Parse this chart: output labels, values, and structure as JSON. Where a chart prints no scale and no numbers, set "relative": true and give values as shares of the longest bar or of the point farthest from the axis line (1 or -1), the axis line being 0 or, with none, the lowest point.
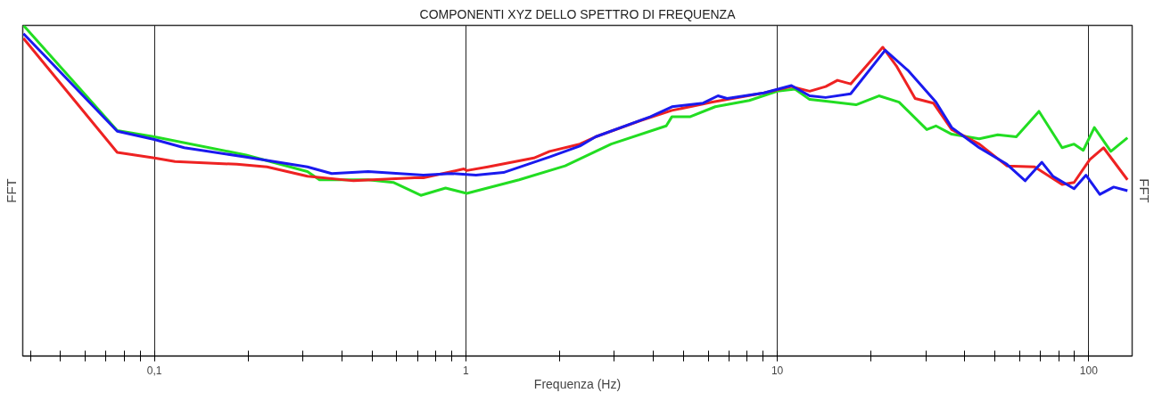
{
  "chart_data": {
    "type": "line",
    "title": "COMPONENTI XYZ DELLO SPETTRO DI FREQUENZA",
    "xlabel": "Frequenza (Hz)",
    "ylabel": "FFT",
    "y2label": "FFT",
    "relative": true,
    "log": "x",
    "grid": "x",
    "xlim": [
      0.0378,
      137.8
    ],
    "xticks": [
      {
        "value": 0.04,
        "label": null
      },
      {
        "value": 0.05,
        "label": null
      },
      {
        "value": 0.06,
        "label": null
      },
      {
        "value": 0.07,
        "label": null
      },
      {
        "value": 0.08,
        "label": null
      },
      {
        "value": 0.09,
        "label": null
      },
      {
        "value": 0.1,
        "label": "0,1"
      },
      {
        "value": 0.2,
        "label": null
      },
      {
        "value": 0.3,
        "label": null
      },
      {
        "value": 0.4,
        "label": null
      },
      {
        "value": 0.5,
        "label": null
      },
      {
        "value": 0.6,
        "label": null
      },
      {
        "value": 0.7,
        "label": null
      },
      {
        "value": 0.8,
        "label": null
      },
      {
        "value": 0.9,
        "label": null
      },
      1,
      {
        "value": 2,
        "label": null
      },
      {
        "value": 3,
        "label": null
      },
      {
        "value": 4,
        "label": null
      },
      {
        "value": 5,
        "label": null
      },
      {
        "value": 6,
        "label": null
      },
      {
        "value": 7,
        "label": null
      },
      {
        "value": 8,
        "label": null
      },
      {
        "value": 9,
        "label": null
      },
      10,
      {
        "value": 20,
        "label": null
      },
      {
        "value": 30,
        "label": null
      },
      {
        "value": 40,
        "label": null
      },
      {
        "value": 50,
        "label": null
      },
      {
        "value": 60,
        "label": null
      },
      {
        "value": 70,
        "label": null
      },
      {
        "value": 80,
        "label": null
      },
      {
        "value": 90,
        "label": null
      },
      100
    ],
    "series": [
      {
        "color": "#22dd22",
        "x": [
          0.038,
          0.076,
          0.1,
          0.197,
          0.31,
          0.339,
          0.486,
          0.585,
          0.717,
          0.861,
          1.007,
          1.483,
          2.084,
          2.93,
          4.4,
          4.59,
          5.26,
          6.32,
          8.13,
          10,
          11.4,
          12.7,
          14.3,
          17.9,
          21.2,
          24.6,
          30.2,
          32.3,
          36.3,
          44.5,
          51.0,
          58.5,
          69.2,
          82.1,
          89.7,
          96.0,
          104.2,
          117.7,
          133.1
        ],
        "values": [
          1.0,
          0.682,
          0.663,
          0.608,
          0.558,
          0.533,
          0.533,
          0.525,
          0.486,
          0.508,
          0.492,
          0.533,
          0.575,
          0.641,
          0.696,
          0.724,
          0.724,
          0.754,
          0.773,
          0.801,
          0.807,
          0.776,
          0.771,
          0.76,
          0.787,
          0.768,
          0.685,
          0.696,
          0.671,
          0.657,
          0.669,
          0.663,
          0.74,
          0.63,
          0.641,
          0.622,
          0.691,
          0.619,
          0.66
        ]
      },
      {
        "color": "#ee2222",
        "x": [
          0.038,
          0.076,
          0.1,
          0.1165,
          0.184,
          0.23,
          0.31,
          0.436,
          0.684,
          0.731,
          0.986,
          1.007,
          1.177,
          1.654,
          1.857,
          2.323,
          2.61,
          3.66,
          4.59,
          6.19,
          9.06,
          11.1,
          12.7,
          14.3,
          15.6,
          17.2,
          21.8,
          24.1,
          27.7,
          31.7,
          36.3,
          44.5,
          54.6,
          67.0,
          82.1,
          89.7,
          100.7,
          111.5,
          133.1
        ],
        "values": [
          0.961,
          0.616,
          0.599,
          0.588,
          0.58,
          0.572,
          0.544,
          0.53,
          0.539,
          0.539,
          0.566,
          0.561,
          0.572,
          0.599,
          0.619,
          0.641,
          0.663,
          0.713,
          0.743,
          0.768,
          0.796,
          0.815,
          0.801,
          0.815,
          0.834,
          0.823,
          0.934,
          0.878,
          0.779,
          0.765,
          0.685,
          0.641,
          0.575,
          0.572,
          0.519,
          0.525,
          0.594,
          0.63,
          0.533
        ]
      },
      {
        "color": "#1a1aee",
        "x": [
          0.038,
          0.076,
          0.1,
          0.1247,
          0.197,
          0.31,
          0.371,
          0.486,
          0.731,
          0.897,
          1.078,
          1.321,
          1.857,
          2.323,
          2.61,
          3.92,
          4.59,
          5.78,
          6.45,
          6.9,
          9.06,
          11.1,
          12.7,
          14.3,
          17.2,
          22.2,
          26.4,
          32.3,
          36.3,
          44.5,
          54.6,
          62.5,
          70.7,
          76.7,
          89.7,
          98.0,
          108.5,
          120.2,
          133.1
        ],
        "values": [
          0.975,
          0.68,
          0.655,
          0.63,
          0.602,
          0.572,
          0.552,
          0.558,
          0.547,
          0.552,
          0.547,
          0.555,
          0.602,
          0.635,
          0.663,
          0.724,
          0.754,
          0.765,
          0.787,
          0.779,
          0.796,
          0.818,
          0.787,
          0.782,
          0.793,
          0.925,
          0.862,
          0.768,
          0.691,
          0.63,
          0.58,
          0.53,
          0.586,
          0.544,
          0.506,
          0.547,
          0.489,
          0.511,
          0.5
        ]
      }
    ]
  }
}
